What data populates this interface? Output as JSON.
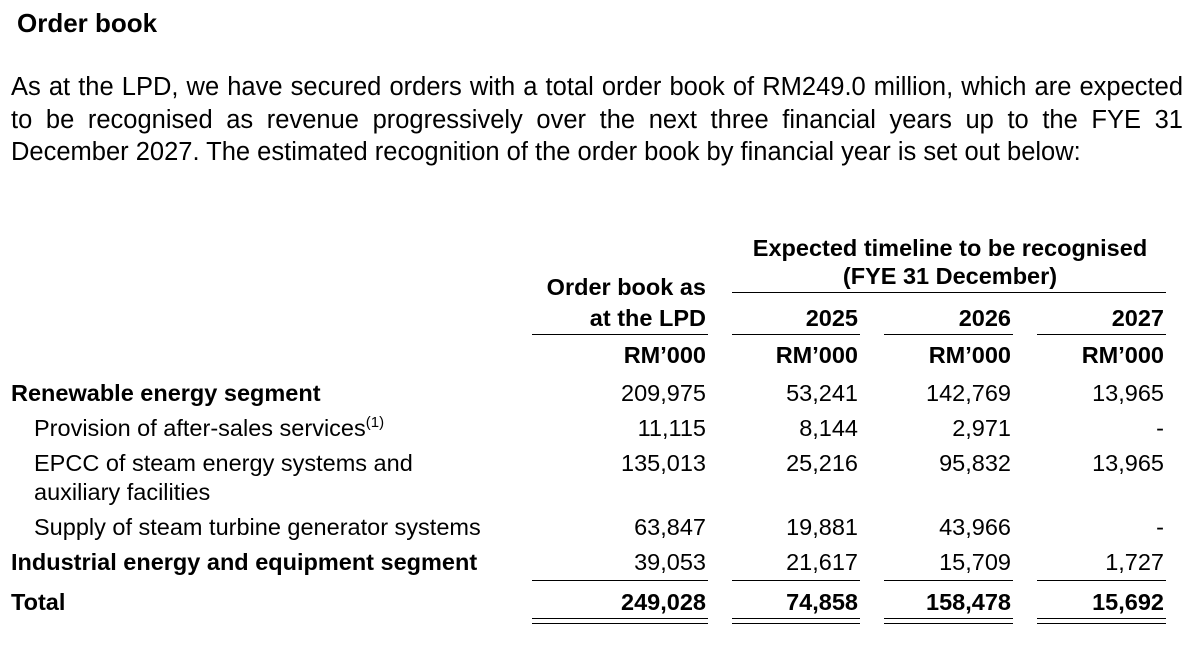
{
  "heading": "Order book",
  "paragraph": "As at the LPD, we have secured orders with a total order book of RM249.0 million, which are expected to be recognised as revenue progressively over the next three financial years up to the FYE 31 December 2027. The estimated recognition of the order book by financial year is set out below:",
  "table": {
    "group_header_line1": "Expected timeline to be recognised",
    "group_header_line2": "(FYE 31 December)",
    "col_orderbook_line1": "Order book as",
    "col_orderbook_line2": "at the LPD",
    "years": [
      "2025",
      "2026",
      "2027"
    ],
    "unit": "RM’000",
    "rows": [
      {
        "label": "Renewable energy segment",
        "orderbook": "209,975",
        "y2025": "53,241",
        "y2026": "142,769",
        "y2027": "13,965"
      },
      {
        "label": "Provision of after-sales services",
        "note": "(1)",
        "orderbook": "11,115",
        "y2025": "8,144",
        "y2026": "2,971",
        "y2027": "-"
      },
      {
        "label_line1": "EPCC of steam energy systems and",
        "label_line2": "auxiliary facilities",
        "orderbook": "135,013",
        "y2025": "25,216",
        "y2026": "95,832",
        "y2027": "13,965"
      },
      {
        "label": "Supply of steam turbine generator systems",
        "orderbook": "63,847",
        "y2025": "19,881",
        "y2026": "43,966",
        "y2027": "-"
      },
      {
        "label": "Industrial energy and equipment segment",
        "orderbook": "39,053",
        "y2025": "21,617",
        "y2026": "15,709",
        "y2027": "1,727"
      }
    ],
    "total": {
      "label": "Total",
      "orderbook": "249,028",
      "y2025": "74,858",
      "y2026": "158,478",
      "y2027": "15,692"
    }
  }
}
